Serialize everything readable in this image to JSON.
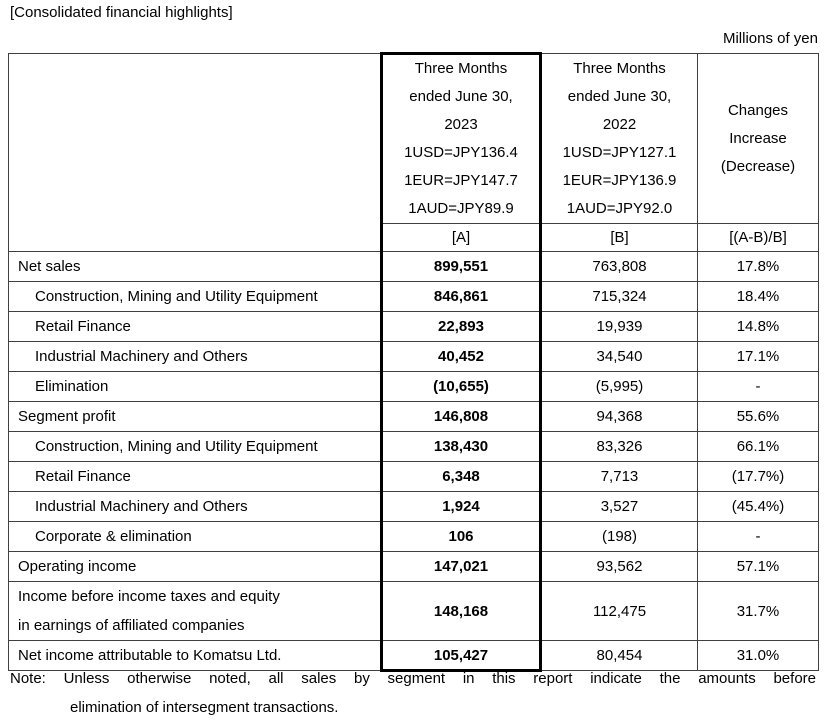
{
  "title": "[Consolidated financial highlights]",
  "unit_label": "Millions of yen",
  "table": {
    "header": {
      "col_a_lines": [
        "Three Months",
        "ended June 30,",
        "2023",
        "1USD=JPY136.4",
        "1EUR=JPY147.7",
        "1AUD=JPY89.9"
      ],
      "col_b_lines": [
        "Three Months",
        "ended June 30,",
        "2022",
        "1USD=JPY127.1",
        "1EUR=JPY136.9",
        "1AUD=JPY92.0"
      ],
      "col_c_lines": [
        "Changes",
        "Increase",
        "(Decrease)"
      ],
      "subheader": [
        "[A]",
        "[B]",
        "[(A-B)/B]"
      ]
    },
    "rows": [
      {
        "label": "Net sales",
        "indent": false,
        "a": "899,551",
        "b": "763,808",
        "change": "17.8%"
      },
      {
        "label": "Construction, Mining and Utility Equipment",
        "indent": true,
        "a": "846,861",
        "b": "715,324",
        "change": "18.4%"
      },
      {
        "label": "Retail Finance",
        "indent": true,
        "a": "22,893",
        "b": "19,939",
        "change": "14.8%"
      },
      {
        "label": "Industrial Machinery and Others",
        "indent": true,
        "a": "40,452",
        "b": "34,540",
        "change": "17.1%"
      },
      {
        "label": "Elimination",
        "indent": true,
        "a": "(10,655)",
        "b": "(5,995)",
        "change": "-"
      },
      {
        "label": "Segment profit",
        "indent": false,
        "a": "146,808",
        "b": "94,368",
        "change": "55.6%"
      },
      {
        "label": "Construction, Mining and Utility Equipment",
        "indent": true,
        "a": "138,430",
        "b": "83,326",
        "change": "66.1%"
      },
      {
        "label": "Retail Finance",
        "indent": true,
        "a": "6,348",
        "b": "7,713",
        "change": "(17.7%)"
      },
      {
        "label": "Industrial Machinery and Others",
        "indent": true,
        "a": "1,924",
        "b": "3,527",
        "change": "(45.4%)"
      },
      {
        "label": "Corporate & elimination",
        "indent": true,
        "a": "106",
        "b": "(198)",
        "change": "-"
      },
      {
        "label": "Operating income",
        "indent": false,
        "a": "147,021",
        "b": "93,562",
        "change": "57.1%"
      },
      {
        "label": "Income before income taxes and equity\nin earnings of affiliated companies",
        "indent": false,
        "a": "148,168",
        "b": "112,475",
        "change": "31.7%"
      },
      {
        "label": "Net income attributable to Komatsu Ltd.",
        "indent": false,
        "a": "105,427",
        "b": "80,454",
        "change": "31.0%"
      }
    ]
  },
  "note": {
    "line1": "Note: Unless otherwise noted, all sales by segment in this report indicate the amounts before",
    "line2": "elimination of intersegment transactions."
  }
}
